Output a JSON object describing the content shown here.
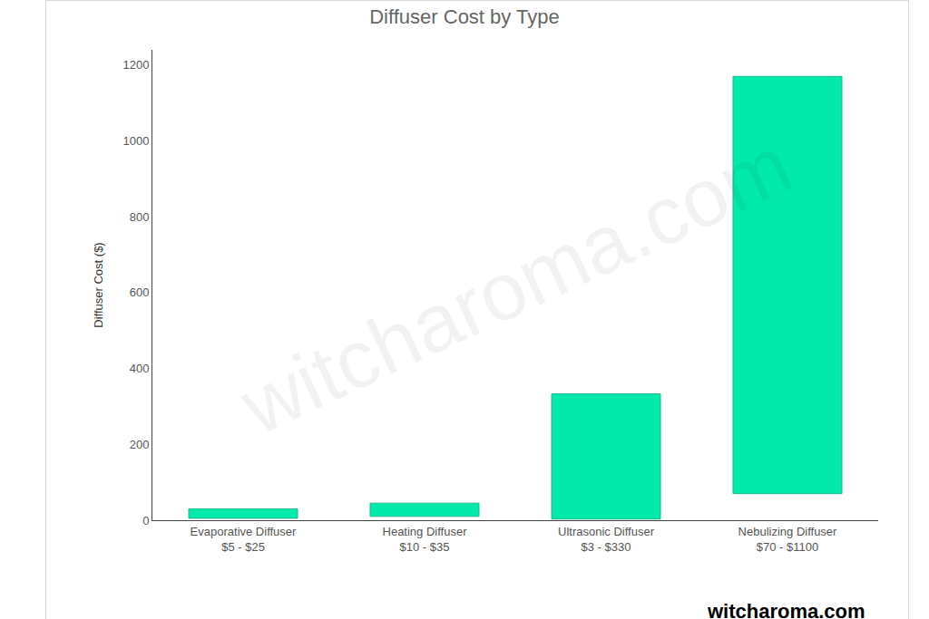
{
  "chart_data": {
    "type": "bar",
    "title": "Diffuser Cost by Type",
    "y_label": "Diffuser Cost ($)",
    "categories": [
      "Evaporative Diffuser\n$5 - $25",
      "Heating Diffuser\n$10 - $35",
      "Ultrasonic Diffuser\n$3 - $330",
      "Nebulizing Diffuser\n$70 - $1100"
    ],
    "base": [
      5,
      10,
      3,
      70
    ],
    "values": [
      25,
      35,
      330,
      1100
    ],
    "color": "#00eaaa",
    "ylim": [
      0,
      1240
    ],
    "yticks": [
      0,
      200,
      400,
      600,
      800,
      1000,
      1200
    ],
    "grid": false,
    "annotations": [
      "witcharoma.com",
      "witcharoma.com"
    ]
  }
}
